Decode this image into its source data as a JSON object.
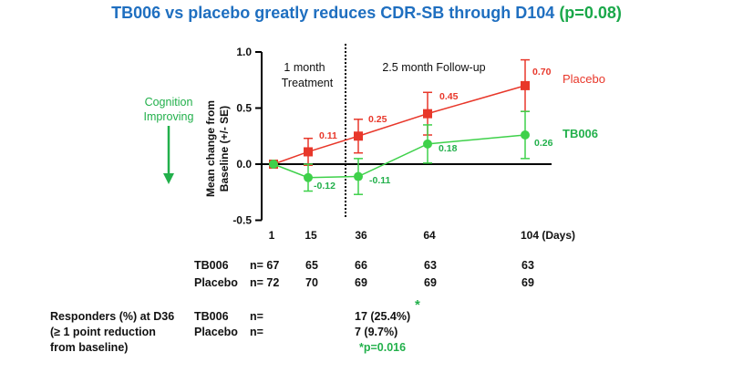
{
  "title": {
    "main": "TB006 vs placebo greatly reduces CDR-SB through D104",
    "p": "(p=0.08)"
  },
  "annotation": {
    "cognition": "Cognition Improving",
    "phase1": "1 month",
    "phase1b": "Treatment",
    "phase2": "2.5 month Follow-up"
  },
  "chart_data": {
    "type": "line",
    "xlabel": "",
    "ylabel": "Mean change from Baseline (+/- SE)",
    "x_ticks": [
      "1",
      "15",
      "36",
      "64",
      "104 (Days)"
    ],
    "y_ticks": [
      "1.0",
      "0.5",
      "0.0",
      "-0.5"
    ],
    "ylim": [
      -0.5,
      1.0
    ],
    "series": [
      {
        "name": "Placebo",
        "color": "#e8372a",
        "marker": "square",
        "values": [
          0.0,
          0.11,
          0.25,
          0.45,
          0.7
        ],
        "labels": [
          "",
          "0.11",
          "0.25",
          "0.45",
          "0.70"
        ],
        "err": [
          0.0,
          0.12,
          0.15,
          0.19,
          0.23
        ]
      },
      {
        "name": "TB006",
        "color": "#3ed14a",
        "marker": "circle",
        "values": [
          0.0,
          -0.12,
          -0.11,
          0.18,
          0.26
        ],
        "labels": [
          "",
          "-0.12",
          "-0.11",
          "0.18",
          "0.26"
        ],
        "err": [
          0.0,
          0.12,
          0.16,
          0.17,
          0.21
        ]
      }
    ]
  },
  "table": {
    "rows": [
      {
        "label": "TB006",
        "n": "n= 67",
        "vals": [
          "65",
          "66",
          "63",
          "63"
        ]
      },
      {
        "label": "Placebo",
        "n": "n= 72",
        "vals": [
          "70",
          "69",
          "69",
          "69"
        ]
      }
    ]
  },
  "responders": {
    "line1": "Responders (%) at D36",
    "line2": "(≥ 1 point reduction",
    "line3": "from baseline)",
    "tb_label": "TB006",
    "pl_label": "Placebo",
    "n_label": "n=",
    "tb_value": "17 (25.4%)",
    "pl_value": "7 (9.7%)",
    "star": "*",
    "pvalue": "*p=0.016"
  }
}
